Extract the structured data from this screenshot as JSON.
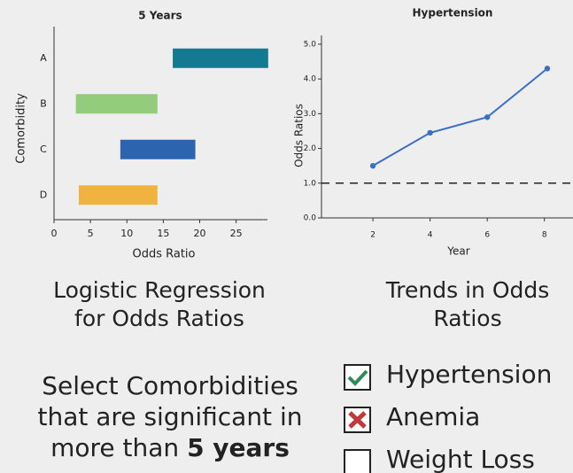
{
  "chart_data": [
    {
      "type": "range_bar",
      "title": "5 Years",
      "x_label": "Odds Ratio",
      "y_label": "Comorbidity",
      "categories": [
        "A",
        "B",
        "C",
        "D"
      ],
      "start": [
        16.3,
        3.0,
        9.1,
        3.4
      ],
      "end": [
        29.4,
        14.2,
        19.4,
        14.2
      ],
      "colors": [
        "#137a91",
        "#93cc7c",
        "#2d64b0",
        "#f1b340"
      ],
      "xlim": [
        0,
        29.3
      ],
      "xticks": [
        0,
        5,
        10,
        15,
        20,
        25
      ]
    },
    {
      "type": "line",
      "title": "Hypertension",
      "x_label": "Year",
      "y_label": "Odds Ratios",
      "x": [
        2,
        4,
        6,
        8.1
      ],
      "values": [
        1.5,
        2.45,
        2.9,
        4.3
      ],
      "color": "#3a6fc4",
      "xlim": [
        0.2,
        9
      ],
      "xticks": [
        2,
        4,
        6,
        8
      ],
      "ylim": [
        0,
        5.1
      ],
      "yticks": [
        {
          "value": 0,
          "label": "0.0"
        },
        {
          "value": 1,
          "label": "1.0"
        },
        {
          "value": 2,
          "label": "2.0"
        },
        {
          "value": 3,
          "label": "3.0"
        },
        {
          "value": 4,
          "label": "4.0"
        },
        {
          "value": 5,
          "label": "5.0"
        }
      ],
      "reference_line": 1
    }
  ],
  "captions": [
    [
      "Logistic Regression",
      "for Odds Ratios"
    ],
    [
      "Trends in Odds",
      "Ratios"
    ]
  ],
  "prompt": {
    "lines": [
      "Select Comorbidities",
      "that are significant in",
      "more than "
    ],
    "bold": "5 years"
  },
  "options": [
    {
      "label": "Hypertension",
      "state": "checked"
    },
    {
      "label": "Anemia",
      "state": "wrong"
    },
    {
      "label": "Weight Loss",
      "state": "empty"
    }
  ]
}
